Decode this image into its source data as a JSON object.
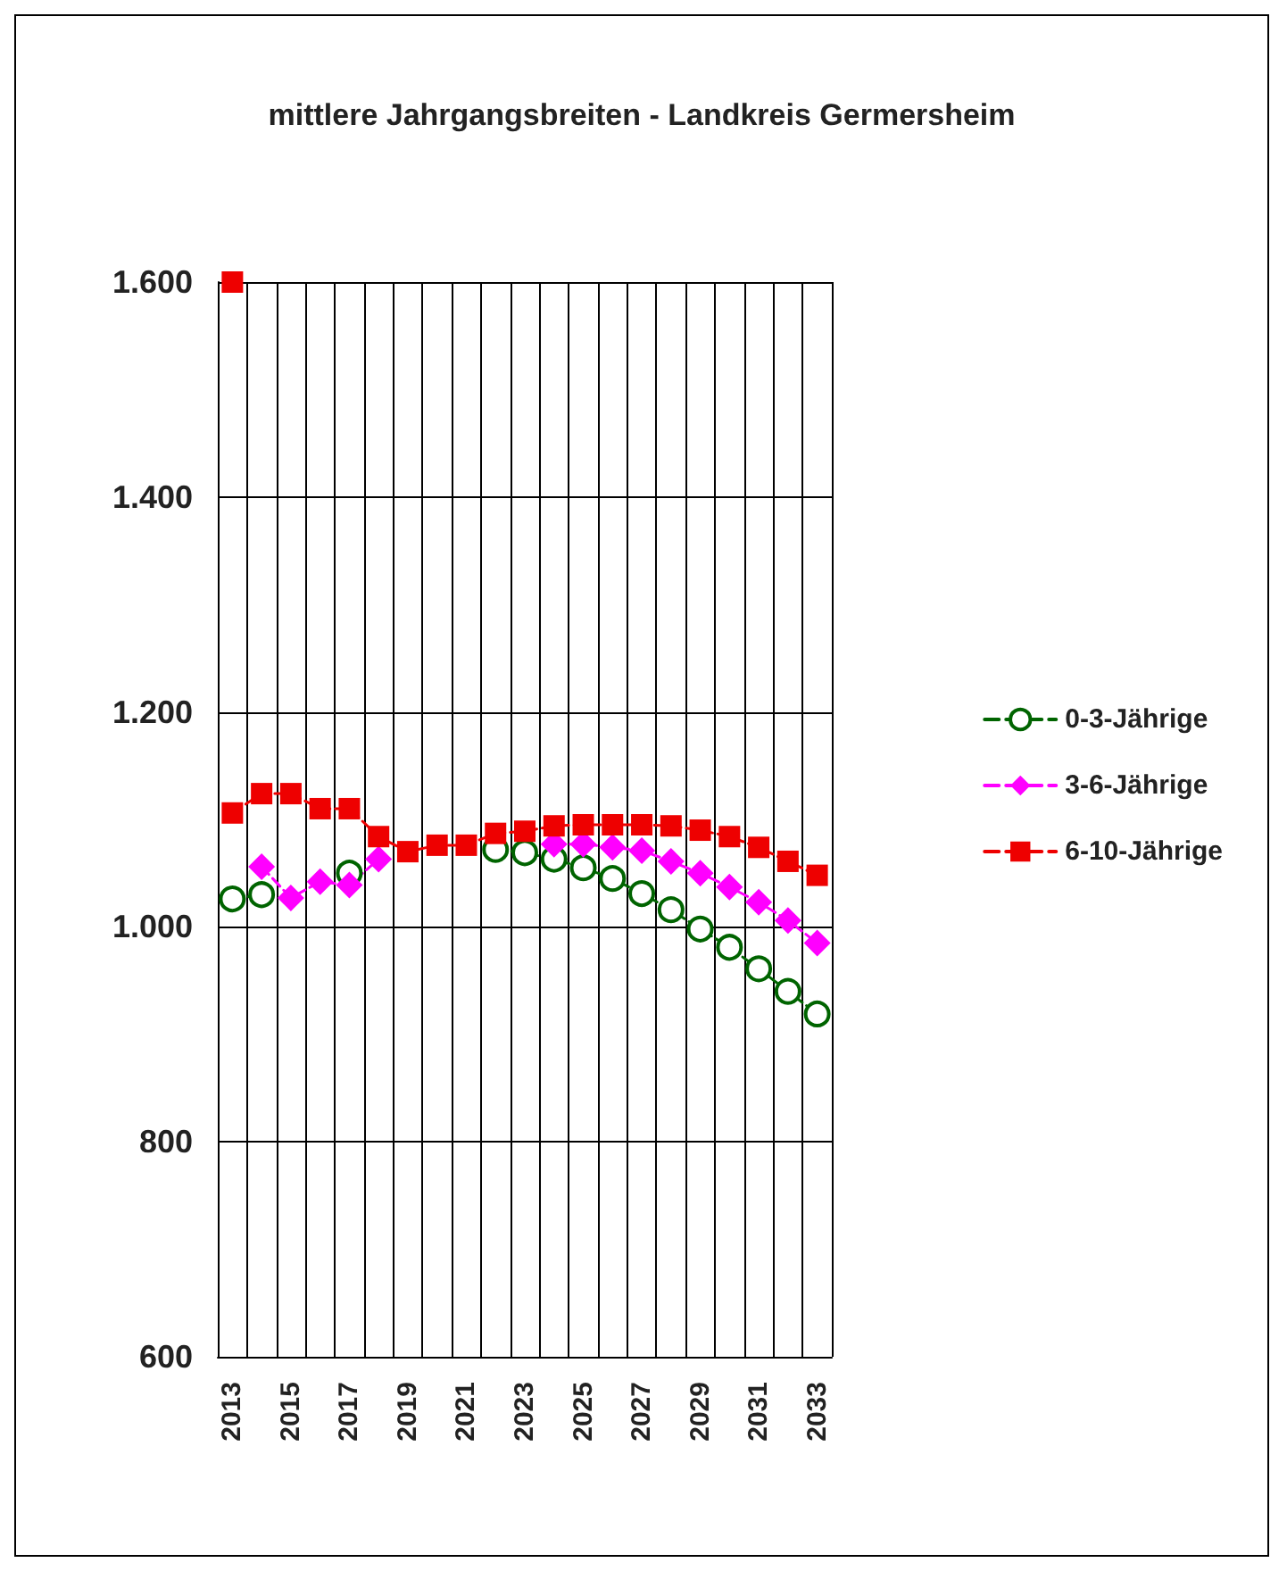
{
  "chart_data": {
    "type": "line",
    "title": "mittlere Jahrgangsbreiten - Landkreis Germersheim",
    "categories": [
      "2013",
      null,
      "2015",
      null,
      "2017",
      null,
      "2019",
      null,
      "2021",
      null,
      "2023",
      null,
      "2025",
      null,
      "2027",
      null,
      "2029",
      null,
      "2031",
      null,
      "2033"
    ],
    "series": [
      {
        "name": "0-3-Jährige",
        "color": "#006400",
        "marker": "circle",
        "values": [
          1026,
          1030,
          null,
          null,
          1050,
          null,
          null,
          null,
          null,
          1072,
          1069,
          1063,
          1055,
          1045,
          1031,
          1016,
          998,
          981,
          961,
          940,
          919
        ]
      },
      {
        "name": "3-6-Jährige",
        "color": "#ff00ff",
        "marker": "diamond",
        "values": [
          null,
          1056,
          1027,
          1042,
          1039,
          1063,
          null,
          null,
          null,
          null,
          null,
          1077,
          1077,
          1074,
          1071,
          1061,
          1050,
          1037,
          1023,
          1006,
          985
        ]
      },
      {
        "name": "6-10-Jährige",
        "color": "#ee0000",
        "marker": "square",
        "values": [
          1106,
          1124,
          1124,
          1110,
          1110,
          1084,
          1070,
          1076,
          1076,
          1087,
          1089,
          1094,
          1095,
          1095,
          1095,
          1094,
          1090,
          1084,
          1074,
          1061,
          1048
        ]
      },
      {
        "color": "#ee0000",
        "marker": "square",
        "values": [
          1600,
          null,
          null,
          null,
          null,
          null,
          null,
          null,
          null,
          null,
          null,
          null,
          null,
          null,
          null,
          null,
          null,
          null,
          null,
          null,
          null
        ]
      }
    ],
    "ylim": [
      600,
      1600
    ],
    "yticks": [
      {
        "value": 600,
        "label": "600"
      },
      {
        "value": 800,
        "label": "800"
      },
      {
        "value": 1000,
        "label": "1.000"
      },
      {
        "value": 1200,
        "label": "1.200"
      },
      {
        "value": 1400,
        "label": "1.400"
      },
      {
        "value": 1600,
        "label": "1.600"
      }
    ],
    "grid": true,
    "legend": "right",
    "line_style": "dashed"
  }
}
